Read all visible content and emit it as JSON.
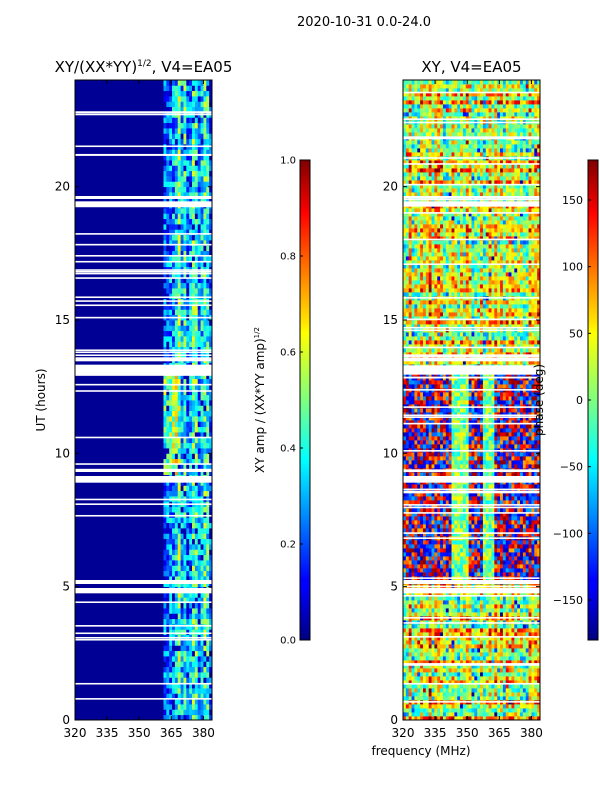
{
  "figure_title": "2020-10-31 0.0-24.0",
  "chart_data": [
    {
      "type": "heatmap",
      "title": "XY/(XX*YY)^{1/2}, V4=EA05",
      "title_parts": {
        "before": "XY/(XX*YY)",
        "exponent": "1/2",
        "after": ", V4=EA05"
      },
      "xlabel": "",
      "ylabel": "UT (hours)",
      "xlim": [
        320,
        384
      ],
      "ylim": [
        0,
        24
      ],
      "x_ticks": [
        320,
        335,
        350,
        365,
        380
      ],
      "y_ticks": [
        0,
        5,
        10,
        15,
        20
      ],
      "colormap": "jet",
      "colorbar": {
        "label": "XY amp / (XX*YY amp)^{1/2}",
        "label_parts": {
          "before": "XY amp / (XX*YY amp)",
          "exponent": "1/2"
        },
        "range": [
          0.0,
          1.0
        ],
        "ticks": [
          "0.0",
          "0.2",
          "0.4",
          "0.6",
          "0.8",
          "1.0"
        ]
      },
      "description_of_values": "Mostly ~0.0-0.05 below 361 MHz; band 361-384 MHz shows values ~0.2-0.6 with peaks ~0.8",
      "flagged_gaps_hours": [
        [
          4.75,
          4.95
        ],
        [
          5.1,
          5.25
        ],
        [
          8.9,
          9.15
        ],
        [
          9.3,
          9.4
        ],
        [
          12.95,
          13.3
        ],
        [
          13.45,
          13.6
        ],
        [
          19.25,
          19.45
        ],
        [
          19.55,
          19.65
        ]
      ]
    },
    {
      "type": "heatmap",
      "title": "XY, V4=EA05",
      "xlabel": "frequency (MHz)",
      "ylabel": "",
      "xlim": [
        320,
        384
      ],
      "ylim": [
        0,
        24
      ],
      "x_ticks": [
        320,
        335,
        350,
        365,
        380
      ],
      "y_ticks": [
        0,
        5,
        10,
        15,
        20
      ],
      "colormap": "jet",
      "colorbar": {
        "label": "phase (deg)",
        "range": [
          -180,
          180
        ],
        "ticks": [
          "150",
          "100",
          "50",
          "0",
          "−50",
          "−100",
          "−150"
        ],
        "tick_values": [
          150,
          100,
          50,
          0,
          -50,
          -100,
          -150
        ]
      },
      "description_of_values": "Phase varies widely (-180 to 180 deg), noisy red/blue structure between ~5-13 h, smoother yellow/green elsewhere",
      "flagged_gaps_hours": [
        [
          4.75,
          4.95
        ],
        [
          5.1,
          5.25
        ],
        [
          8.9,
          9.15
        ],
        [
          9.3,
          9.4
        ],
        [
          12.95,
          13.3
        ],
        [
          13.45,
          13.6
        ],
        [
          19.25,
          19.45
        ],
        [
          19.55,
          19.65
        ]
      ]
    }
  ]
}
